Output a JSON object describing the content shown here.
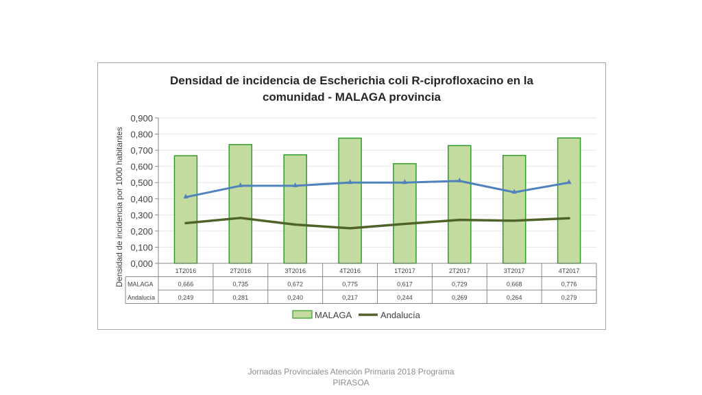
{
  "footer": "Jornadas Provinciales Atención Primaria 2018  Programa PIRASOA",
  "chart_data": {
    "type": "bar",
    "title_line1": "Densidad de incidencia de Escherichia coli R-ciprofloxacino en la",
    "title_line2": "comunidad - MALAGA provincia",
    "ylabel": "Densidad de incidencia por 1000 habitantes",
    "xlabel": "",
    "categories": [
      "1T2016",
      "2T2016",
      "3T2016",
      "4T2016",
      "1T2017",
      "2T2017",
      "3T2017",
      "4T2017"
    ],
    "series": [
      {
        "name": "MALAGA",
        "kind": "bar",
        "color": "#c4dba0",
        "edge": "#2e9a27",
        "values": [
          0.666,
          0.735,
          0.672,
          0.775,
          0.617,
          0.729,
          0.668,
          0.776
        ],
        "labels": [
          "0,666",
          "0,735",
          "0,672",
          "0,775",
          "0,617",
          "0,729",
          "0,668",
          "0,776"
        ]
      },
      {
        "name": "Andalucía",
        "kind": "line",
        "color": "#4f6228",
        "values": [
          0.249,
          0.281,
          0.24,
          0.217,
          0.244,
          0.269,
          0.264,
          0.279
        ],
        "labels": [
          "0,249",
          "0,281",
          "0,240",
          "0,217",
          "0,244",
          "0,269",
          "0,264",
          "0,279"
        ]
      },
      {
        "kind": "line",
        "color": "#4f81bd",
        "values": [
          0.41,
          0.48,
          0.48,
          0.5,
          0.5,
          0.51,
          0.44,
          0.5
        ]
      }
    ],
    "ylim": [
      0,
      0.9
    ],
    "yticks": [
      "0,000",
      "0,100",
      "0,200",
      "0,300",
      "0,400",
      "0,500",
      "0,600",
      "0,700",
      "0,800",
      "0,900"
    ],
    "grid": true,
    "legend": "bottom",
    "data_table": true
  }
}
